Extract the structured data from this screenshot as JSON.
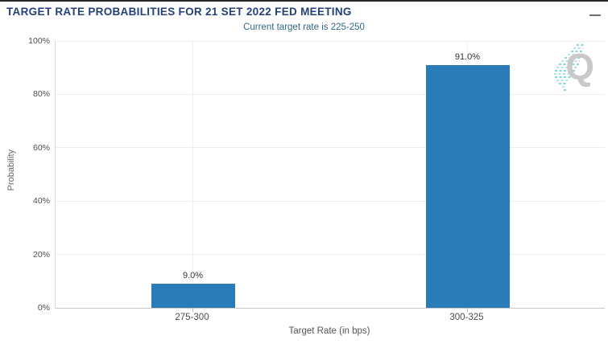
{
  "header": {
    "title": "TARGET RATE PROBABILITIES FOR 21 SET 2022 FED MEETING",
    "subtitle": "Current target rate is 225-250"
  },
  "menu": {
    "icon": "hamburger-icon"
  },
  "watermark": {
    "letter": "Q",
    "swoosh_color": "#5ec4dd",
    "letter_color": "#c9c9c9"
  },
  "chart_data": {
    "type": "bar",
    "title": "TARGET RATE PROBABILITIES FOR 21 SET 2022 FED MEETING",
    "subtitle": "Current target rate is 225-250",
    "categories": [
      "275-300",
      "300-325"
    ],
    "values": [
      9.0,
      91.0
    ],
    "value_labels": [
      "9.0%",
      "91.0%"
    ],
    "xlabel": "Target Rate (in bps)",
    "ylabel": "Probability",
    "ylim": [
      0,
      100
    ],
    "yticks": [
      0,
      20,
      40,
      60,
      80,
      100
    ],
    "ytick_labels": [
      "0%",
      "20%",
      "40%",
      "60%",
      "80%",
      "100%"
    ],
    "grid": true,
    "legend": "none",
    "bar_color": "#2a7cb8"
  }
}
